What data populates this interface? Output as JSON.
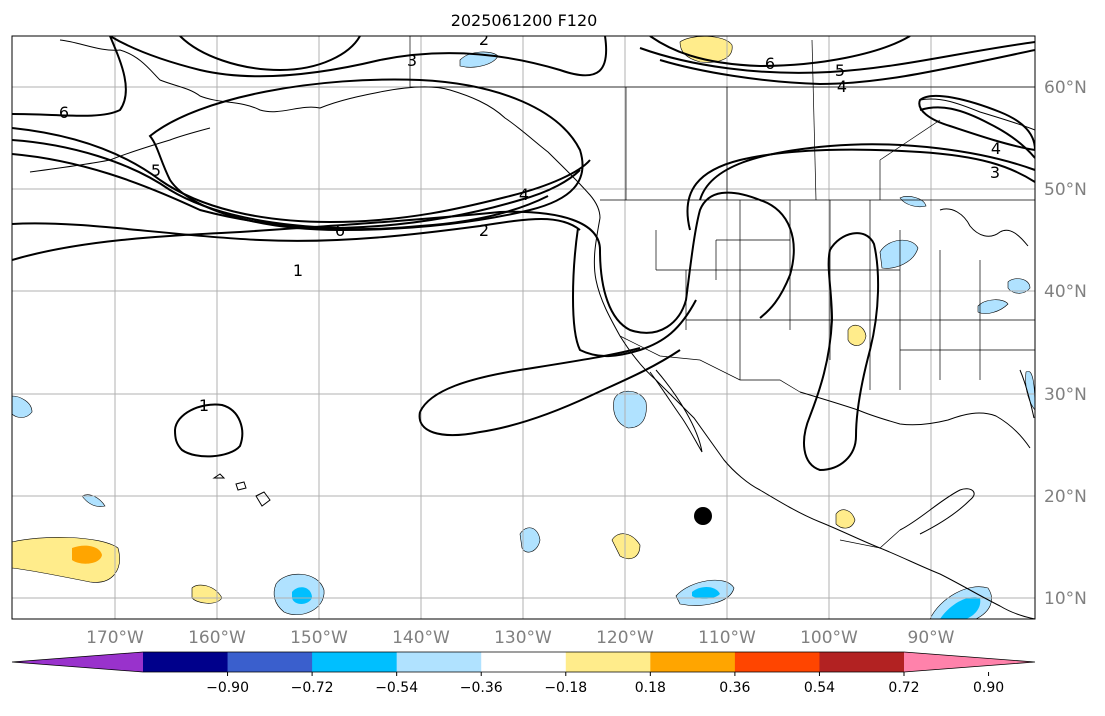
{
  "title": "2025061200 F120",
  "lon_labels": [
    "170°W",
    "160°W",
    "150°W",
    "140°W",
    "130°W",
    "120°W",
    "110°W",
    "100°W",
    "90°W"
  ],
  "lat_labels": [
    "60°N",
    "50°N",
    "40°N",
    "30°N",
    "20°N",
    "10°N"
  ],
  "contour_labels": [
    "1",
    "1",
    "2",
    "2",
    "3",
    "3",
    "4",
    "4",
    "4",
    "5",
    "5",
    "6",
    "6",
    "6"
  ],
  "colorbar": {
    "ticks": [
      "−0.90",
      "−0.72",
      "−0.54",
      "−0.36",
      "−0.18",
      "0.18",
      "0.36",
      "0.54",
      "0.72",
      "0.90"
    ],
    "colors": [
      "#9932cc",
      "#00008b",
      "#3a5fcd",
      "#00bfff",
      "#b0e2ff",
      "#ffffff",
      "#ffec8b",
      "#ffa500",
      "#ff4500",
      "#b22222",
      "#ff82ab"
    ]
  },
  "colors": {
    "grid": "#b0b0b0",
    "tick_label": "#808080",
    "contour": "#000000"
  },
  "marker": {
    "label": "storm-center",
    "color": "#000000"
  }
}
